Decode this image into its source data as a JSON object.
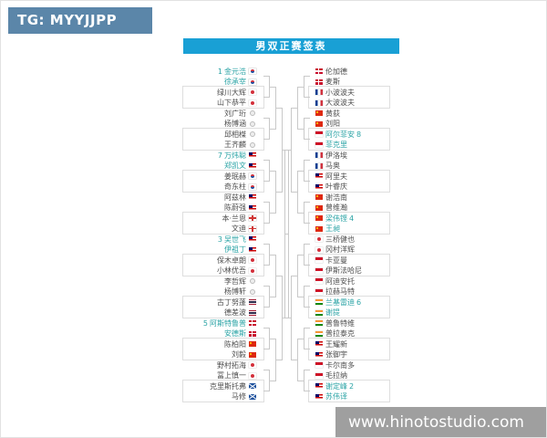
{
  "watermarks": {
    "tg": "TG: MYYJJPP",
    "site": "www.hinotostudio.com"
  },
  "title": "男双正赛签表",
  "colors": {
    "title_bg": "#19a0d5",
    "seeded_text": "#2aa3a5",
    "normal_text": "#4d4d4d",
    "bracket_line": "#c9c9c9",
    "tg_watermark_bg": "#5b86a9",
    "site_watermark_bg": "#8a8a8a"
  },
  "bracket": {
    "left": [
      {
        "p1": "金元浩",
        "p2": "徐承宰",
        "seed": "1",
        "seeded": true,
        "country": "kr"
      },
      {
        "p1": "绿川大辉",
        "p2": "山下恭平",
        "country": "jp"
      },
      {
        "p1": "刘广珩",
        "p2": "杨博涵",
        "country": "tw"
      },
      {
        "p1": "邱相榤",
        "p2": "王齐麟",
        "country": "tw"
      },
      {
        "p1": "万炜聪",
        "p2": "郑凯文",
        "seed": "7",
        "seeded": true,
        "country": "my"
      },
      {
        "p1": "姜珉赫",
        "p2": "奇东柱",
        "country": "kr"
      },
      {
        "p1": "阿兹林",
        "p2": "陈蔚强",
        "country": "my"
      },
      {
        "p1": "本·兰恩",
        "p2": "文迪",
        "country": "en"
      },
      {
        "p1": "吴世飞",
        "p2": "伊祖丁",
        "seed": "3",
        "seeded": true,
        "country": "my"
      },
      {
        "p1": "保木卓朗",
        "p2": "小林优吾",
        "country": "jp"
      },
      {
        "p1": "李哲辉",
        "p2": "杨博轩",
        "country": "tw"
      },
      {
        "p1": "古丁努蓬",
        "p2": "德差波",
        "country": "th"
      },
      {
        "p1": "阿斯特鲁普",
        "p2": "安德斯",
        "seed": "5",
        "seeded": true,
        "country": "dk"
      },
      {
        "p1": "陈柏阳",
        "p2": "刘毅",
        "country": "cn"
      },
      {
        "p1": "野村拓海",
        "p2": "冨上慎一",
        "country": "jp"
      },
      {
        "p1": "克里斯托弗",
        "p2": "马修",
        "country": "sct"
      }
    ],
    "right": [
      {
        "p1": "伦加德",
        "p2": "麦斯",
        "country": "dk"
      },
      {
        "p1": "小波波夫",
        "p2": "大波波夫",
        "country": "fr"
      },
      {
        "p1": "黄荻",
        "p2": "刘阳",
        "country": "cn"
      },
      {
        "p1": "阿尔菲安",
        "p2": "菲克里",
        "seed": "8",
        "seeded": true,
        "country": "id"
      },
      {
        "p1": "伊洛埃",
        "p2": "马奥",
        "country": "fr"
      },
      {
        "p1": "阿里夫",
        "p2": "叶睿庆",
        "country": "my"
      },
      {
        "p1": "谢浩南",
        "p2": "曾维瀚",
        "country": "cn"
      },
      {
        "p1": "梁伟铿",
        "p2": "王昶",
        "seed": "4",
        "seeded": true,
        "country": "cn"
      },
      {
        "p1": "三桥健也",
        "p2": "冈村洋辉",
        "country": "jp"
      },
      {
        "p1": "卡亚曼",
        "p2": "伊斯法哈尼",
        "country": "id"
      },
      {
        "p1": "阿迪安托",
        "p2": "拉赫马特",
        "country": "id"
      },
      {
        "p1": "兰基雷迪",
        "p2": "谢提",
        "seed": "6",
        "seeded": true,
        "country": "in"
      },
      {
        "p1": "普鲁特维",
        "p2": "普拉泰克",
        "country": "in"
      },
      {
        "p1": "王耀新",
        "p2": "张御宇",
        "country": "my"
      },
      {
        "p1": "卡尔南多",
        "p2": "毛拉纳",
        "country": "id"
      },
      {
        "p1": "谢定峰",
        "p2": "苏伟译",
        "seed": "2",
        "seeded": true,
        "country": "my"
      }
    ]
  }
}
